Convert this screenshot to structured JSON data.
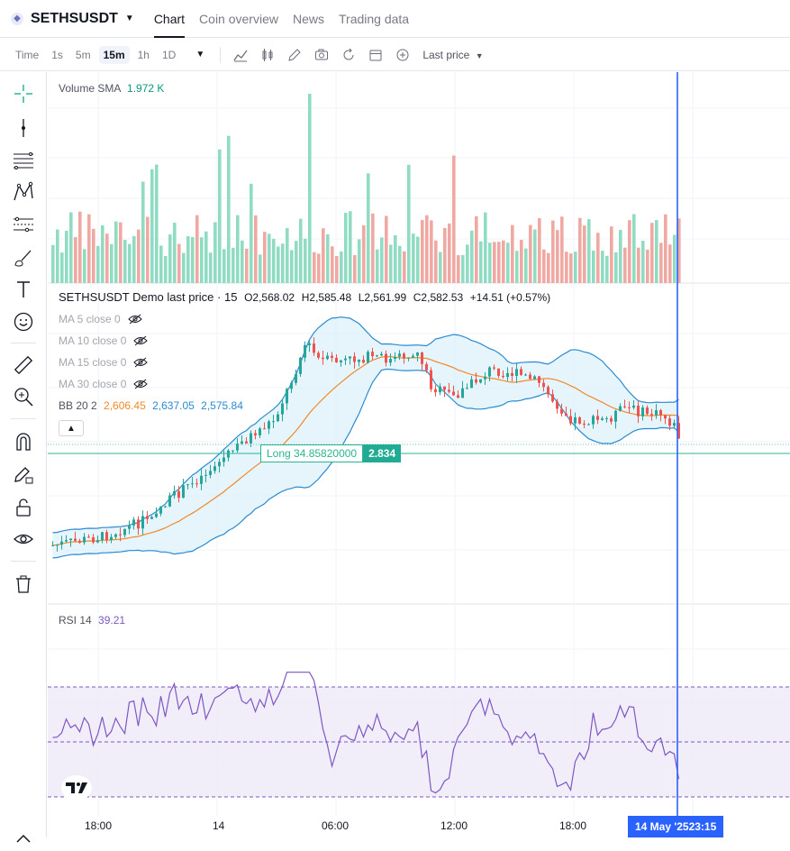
{
  "header": {
    "symbol": "SETHSUSDT",
    "tabs": [
      "Chart",
      "Coin overview",
      "News",
      "Trading data"
    ],
    "active_tab": 0
  },
  "toolbar": {
    "time_label": "Time",
    "intervals": [
      "1s",
      "5m",
      "15m",
      "1h",
      "1D"
    ],
    "selected_interval": "15m",
    "price_type": "Last price"
  },
  "volume": {
    "label": "Volume SMA",
    "value": "1.972 K"
  },
  "main": {
    "name": "SETHSUSDT Demo last price · 15",
    "open": "O2,568.02",
    "high": "H2,585.48",
    "low": "L2,561.99",
    "close": "C2,582.53",
    "change": "+14.51 (+0.57%)",
    "ma": [
      "MA 5 close 0",
      "MA 10 close 0",
      "MA 15 close 0",
      "MA 30 close 0"
    ],
    "bb_label": "BB 20 2",
    "bb_basis": "2,606.45",
    "bb_upper": "2,637.05",
    "bb_lower": "2,575.84",
    "position_label": "Long 34.85820000",
    "position_value": "2.834"
  },
  "rsi": {
    "label": "RSI 14",
    "value": "39.21"
  },
  "xaxis": {
    "ticks": [
      "18:00",
      "14",
      "06:00",
      "12:00",
      "18:00"
    ],
    "cursor_date": "14 May '25",
    "cursor_time": "23:15"
  },
  "colors": {
    "up": "#26a69a",
    "down": "#ef5350",
    "vol_up": "#8fdcc3",
    "vol_down": "#f0a8a2",
    "bb": "#2b8bd0",
    "basis": "#ef8a2b",
    "rsi": "#7e57c2",
    "crosshair": "#2962ff"
  },
  "chart_data": [
    {
      "type": "bar",
      "title": "Volume SMA",
      "bars_count": 140
    },
    {
      "type": "candlestick",
      "title": "SETHSUSDT Demo last price · 15",
      "ylim": [
        2500,
        2700
      ]
    },
    {
      "type": "line",
      "title": "RSI 14",
      "ylim": [
        0,
        100
      ],
      "bands": [
        30,
        50,
        70
      ]
    }
  ]
}
